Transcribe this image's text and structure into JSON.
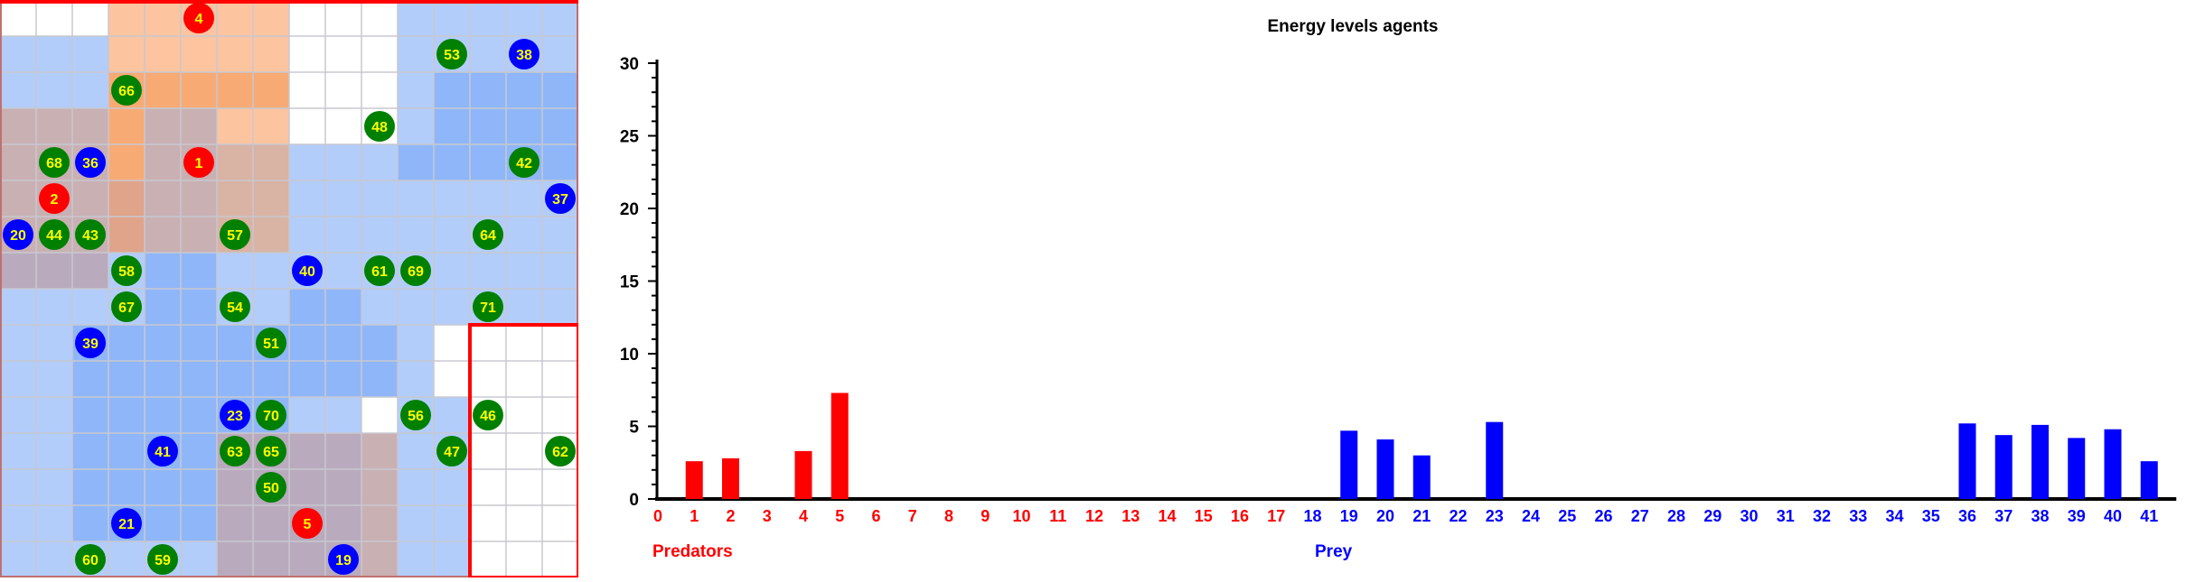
{
  "simulation": {
    "predator_color": "#ff0000",
    "prey_color": "#0000ff",
    "grass_color": "#008000",
    "label_color": "#ffff00",
    "agents": [
      {
        "id": "4",
        "type": "predator",
        "col": 5,
        "row": 0
      },
      {
        "id": "53",
        "type": "grass",
        "col": 12,
        "row": 1
      },
      {
        "id": "38",
        "type": "prey",
        "col": 14,
        "row": 1
      },
      {
        "id": "66",
        "type": "grass",
        "col": 3,
        "row": 2
      },
      {
        "id": "48",
        "type": "grass",
        "col": 10,
        "row": 3
      },
      {
        "id": "68",
        "type": "grass",
        "col": 1,
        "row": 4
      },
      {
        "id": "36",
        "type": "prey",
        "col": 2,
        "row": 4
      },
      {
        "id": "1",
        "type": "predator",
        "col": 5,
        "row": 4
      },
      {
        "id": "42",
        "type": "grass",
        "col": 14,
        "row": 4
      },
      {
        "id": "2",
        "type": "predator",
        "col": 1,
        "row": 5
      },
      {
        "id": "37",
        "type": "prey",
        "col": 15,
        "row": 5
      },
      {
        "id": "20",
        "type": "prey",
        "col": 0,
        "row": 6
      },
      {
        "id": "44",
        "type": "grass",
        "col": 1,
        "row": 6
      },
      {
        "id": "43",
        "type": "grass",
        "col": 2,
        "row": 6
      },
      {
        "id": "57",
        "type": "grass",
        "col": 6,
        "row": 6
      },
      {
        "id": "64",
        "type": "grass",
        "col": 13,
        "row": 6
      },
      {
        "id": "58",
        "type": "grass",
        "col": 3,
        "row": 7
      },
      {
        "id": "40",
        "type": "prey",
        "col": 8,
        "row": 7
      },
      {
        "id": "61",
        "type": "grass",
        "col": 10,
        "row": 7
      },
      {
        "id": "69",
        "type": "grass",
        "col": 11,
        "row": 7
      },
      {
        "id": "67",
        "type": "grass",
        "col": 3,
        "row": 8
      },
      {
        "id": "54",
        "type": "grass",
        "col": 6,
        "row": 8
      },
      {
        "id": "71",
        "type": "grass",
        "col": 13,
        "row": 8
      },
      {
        "id": "39",
        "type": "prey",
        "col": 2,
        "row": 9
      },
      {
        "id": "51",
        "type": "grass",
        "col": 7,
        "row": 9
      },
      {
        "id": "23",
        "type": "prey",
        "col": 6,
        "row": 11
      },
      {
        "id": "70",
        "type": "grass",
        "col": 7,
        "row": 11
      },
      {
        "id": "56",
        "type": "grass",
        "col": 11,
        "row": 11
      },
      {
        "id": "46",
        "type": "grass",
        "col": 13,
        "row": 11
      },
      {
        "id": "41",
        "type": "prey",
        "col": 4,
        "row": 12
      },
      {
        "id": "63",
        "type": "grass",
        "col": 6,
        "row": 12
      },
      {
        "id": "65",
        "type": "grass",
        "col": 7,
        "row": 12
      },
      {
        "id": "47",
        "type": "grass",
        "col": 12,
        "row": 12
      },
      {
        "id": "62",
        "type": "grass",
        "col": 15,
        "row": 12
      },
      {
        "id": "50",
        "type": "grass",
        "col": 7,
        "row": 13
      },
      {
        "id": "21",
        "type": "prey",
        "col": 3,
        "row": 14
      },
      {
        "id": "5",
        "type": "predator",
        "col": 8,
        "row": 14
      },
      {
        "id": "60",
        "type": "grass",
        "col": 2,
        "row": 15
      },
      {
        "id": "59",
        "type": "grass",
        "col": 4,
        "row": 15
      },
      {
        "id": "19",
        "type": "prey",
        "col": 9,
        "row": 15
      }
    ]
  },
  "chart_data": {
    "type": "bar",
    "title": "Energy levels agents",
    "ylim": [
      0,
      30
    ],
    "yticks": [
      "0",
      "5",
      "10",
      "15",
      "20",
      "25",
      "30"
    ],
    "categories": [
      "0",
      "1",
      "2",
      "3",
      "4",
      "5",
      "6",
      "7",
      "8",
      "9",
      "10",
      "11",
      "12",
      "13",
      "14",
      "15",
      "16",
      "17",
      "18",
      "19",
      "20",
      "21",
      "22",
      "23",
      "24",
      "25",
      "26",
      "27",
      "28",
      "29",
      "30",
      "31",
      "32",
      "33",
      "34",
      "35",
      "36",
      "37",
      "38",
      "39",
      "40",
      "41"
    ],
    "category_colors": [
      "#ff0000",
      "#ff0000",
      "#ff0000",
      "#ff0000",
      "#ff0000",
      "#ff0000",
      "#ff0000",
      "#ff0000",
      "#ff0000",
      "#ff0000",
      "#ff0000",
      "#ff0000",
      "#ff0000",
      "#ff0000",
      "#ff0000",
      "#ff0000",
      "#ff0000",
      "#ff0000",
      "#0000ff",
      "#0000ff",
      "#0000ff",
      "#0000ff",
      "#0000ff",
      "#0000ff",
      "#0000ff",
      "#0000ff",
      "#0000ff",
      "#0000ff",
      "#0000ff",
      "#0000ff",
      "#0000ff",
      "#0000ff",
      "#0000ff",
      "#0000ff",
      "#0000ff",
      "#0000ff",
      "#0000ff",
      "#0000ff",
      "#0000ff",
      "#0000ff",
      "#0000ff",
      "#0000ff"
    ],
    "values": [
      0,
      2.6,
      2.8,
      0,
      3.3,
      7.3,
      0,
      0,
      0,
      0,
      0,
      0,
      0,
      0,
      0,
      0,
      0,
      0,
      0,
      4.7,
      4.1,
      3.0,
      0,
      5.3,
      0,
      0,
      0,
      0,
      0,
      0,
      0,
      0,
      0,
      0,
      0,
      0,
      5.2,
      4.4,
      5.1,
      4.2,
      4.8,
      2.6
    ],
    "groups": [
      {
        "name": "Predators",
        "color": "#ff0000"
      },
      {
        "name": "Prey",
        "color": "#0000ff"
      }
    ]
  }
}
